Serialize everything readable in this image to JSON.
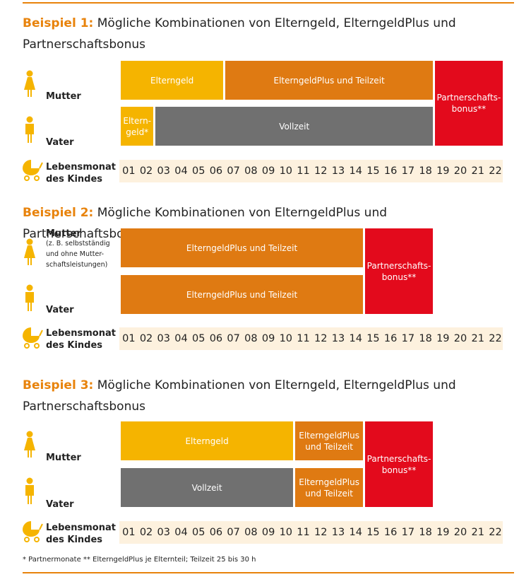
{
  "examples": [
    {
      "title_prefix": "Beispiel 1:",
      "title": "Mögliche Kombinationen von Elterngeld, ElterngeldPlus und Partnerschaftsbonus",
      "rows": [
        {
          "label": "Mutter"
        },
        {
          "label": "Vater"
        }
      ],
      "bars": [
        {
          "lines": [
            "Elterngeld"
          ]
        },
        {
          "lines": [
            "ElterngeldPlus und Teilzeit"
          ]
        },
        {
          "lines": [
            "Partnerschafts-",
            "bonus**"
          ]
        },
        {
          "lines": [
            "Eltern-",
            "geld*"
          ]
        },
        {
          "lines": [
            "Vollzeit"
          ]
        }
      ],
      "axis_label": [
        "Lebensmonat",
        "des Kindes"
      ],
      "months": [
        "01",
        "02",
        "03",
        "04",
        "05",
        "06",
        "07",
        "08",
        "09",
        "10",
        "11",
        "12",
        "13",
        "14",
        "15",
        "16",
        "17",
        "18",
        "19",
        "20",
        "21",
        "22"
      ]
    },
    {
      "title_prefix": "Beispiel 2:",
      "title": "Mögliche Kombinationen von ElterngeldPlus und Partnerschaftsbonus",
      "rows": [
        {
          "label": "Mutter",
          "note": [
            "(z. B. selbstständig",
            "und ohne Mutter-",
            "schaftsleistungen)"
          ]
        },
        {
          "label": "Vater"
        }
      ],
      "bars": [
        {
          "lines": [
            "ElterngeldPlus und Teilzeit"
          ]
        },
        {
          "lines": [
            "ElterngeldPlus und Teilzeit"
          ]
        },
        {
          "lines": [
            "Partnerschafts-",
            "bonus**"
          ]
        }
      ],
      "axis_label": [
        "Lebensmonat",
        "des Kindes"
      ],
      "months": [
        "01",
        "02",
        "03",
        "04",
        "05",
        "06",
        "07",
        "08",
        "09",
        "10",
        "11",
        "12",
        "13",
        "14",
        "15",
        "16",
        "17",
        "18",
        "19",
        "20",
        "21",
        "22"
      ]
    },
    {
      "title_prefix": "Beispiel 3:",
      "title": "Mögliche Kombinationen von Elterngeld, ElterngeldPlus und Partnerschaftsbonus",
      "rows": [
        {
          "label": "Mutter"
        },
        {
          "label": "Vater"
        }
      ],
      "bars": [
        {
          "lines": [
            "Elterngeld"
          ]
        },
        {
          "lines": [
            "ElterngeldPlus",
            "und Teilzeit"
          ]
        },
        {
          "lines": [
            "Partnerschafts-",
            "bonus**"
          ]
        },
        {
          "lines": [
            "Vollzeit"
          ]
        },
        {
          "lines": [
            "ElterngeldPlus",
            "und Teilzeit"
          ]
        }
      ],
      "axis_label": [
        "Lebensmonat",
        "des Kindes"
      ],
      "months": [
        "01",
        "02",
        "03",
        "04",
        "05",
        "06",
        "07",
        "08",
        "09",
        "10",
        "11",
        "12",
        "13",
        "14",
        "15",
        "16",
        "17",
        "18",
        "19",
        "20",
        "21",
        "22"
      ]
    }
  ],
  "footnote": "*   Partnermonate    ** ElterngeldPlus je Elternteil; Teilzeit 25 bis 30 h"
}
